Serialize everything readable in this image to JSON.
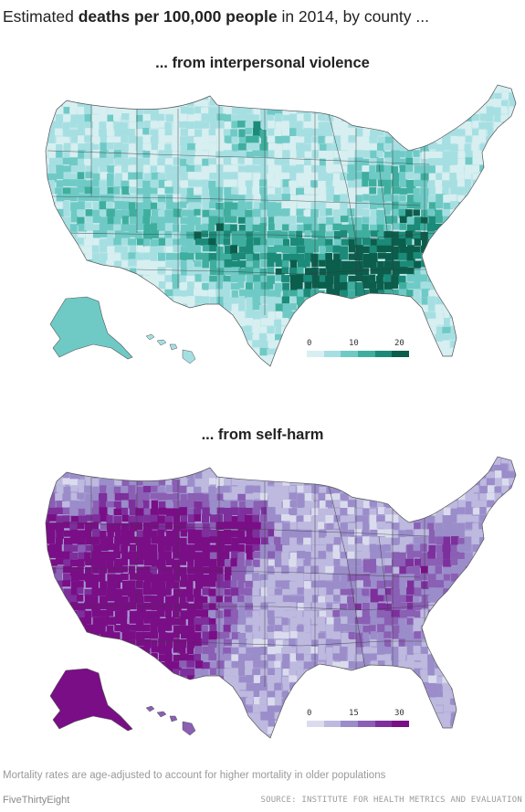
{
  "headline": {
    "prefix": "Estimated ",
    "bold": "deaths per 100,000 people",
    "suffix": " in 2014, by county ..."
  },
  "maps": [
    {
      "title": "... from interpersonal violence",
      "legend": {
        "ticks": [
          "0",
          "10",
          "20"
        ],
        "min": 0,
        "max": 20
      },
      "colors": [
        "#d7eff1",
        "#a6dfe2",
        "#6fcac6",
        "#3fae9f",
        "#1c8a78",
        "#0b5e4c"
      ]
    },
    {
      "title": "... from self-harm",
      "legend": {
        "ticks": [
          "0",
          "15",
          "30"
        ],
        "min": 0,
        "max": 30
      },
      "colors": [
        "#dadcee",
        "#bdb9df",
        "#9b8cca",
        "#8a5fb4",
        "#7d2f9c",
        "#7a0e86"
      ]
    }
  ],
  "footnote": "Mortality rates are age-adjusted to account for higher mortality in older populations",
  "credit": "FiveThirtyEight",
  "source": "SOURCE: INSTITUTE FOR HEALTH METRICS AND EVALUATION"
}
